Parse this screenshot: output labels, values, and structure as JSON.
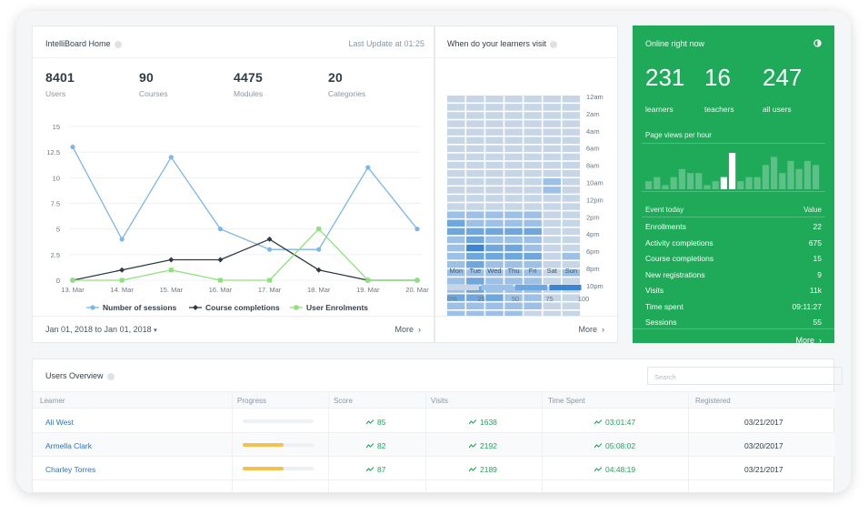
{
  "header": {
    "title": "IntelliBoard Home",
    "last_update": "Last Update at 01:25"
  },
  "stats": [
    {
      "value": "8401",
      "label": "Users"
    },
    {
      "value": "90",
      "label": "Courses"
    },
    {
      "value": "4475",
      "label": "Modules"
    },
    {
      "value": "20",
      "label": "Categories"
    }
  ],
  "chart_data": {
    "type": "line",
    "x": [
      "13. Mar",
      "14. Mar",
      "15. Mar",
      "16. Mar",
      "17. Mar",
      "18. Mar",
      "19. Mar",
      "20. Mar"
    ],
    "y_ticks": [
      "15",
      "12.5",
      "10",
      "7.5",
      "5",
      "2.5",
      "0"
    ],
    "ylim": [
      0,
      15
    ],
    "series": [
      {
        "name": "Number of sessions",
        "color": "#7eb6e6",
        "values": [
          13,
          4,
          12,
          5,
          3,
          3,
          11,
          5
        ]
      },
      {
        "name": "Course completions",
        "color": "#2f3a44",
        "values": [
          0,
          1,
          2,
          2,
          4,
          1,
          0,
          0
        ]
      },
      {
        "name": "User Enrolments",
        "color": "#8fe07c",
        "values": [
          0,
          0,
          1,
          0,
          0,
          5,
          0,
          0
        ]
      }
    ],
    "legend": "bottom",
    "grid": true
  },
  "date_range": "Jan 01, 2018 to Jan 01, 2018",
  "more_label": "More",
  "heatmap": {
    "title": "When do your learners visit",
    "days": [
      "Mon",
      "Tue",
      "Wed",
      "Thu",
      "Fri",
      "Sat",
      "Sun"
    ],
    "hours": [
      "12am",
      "2am",
      "4am",
      "6am",
      "8am",
      "10am",
      "12pm",
      "2pm",
      "4pm",
      "6pm",
      "8pm",
      "10pm"
    ],
    "levels": [
      [
        1,
        1,
        1,
        1,
        1,
        1,
        1
      ],
      [
        1,
        1,
        1,
        1,
        1,
        1,
        1
      ],
      [
        1,
        1,
        1,
        1,
        1,
        1,
        1
      ],
      [
        1,
        1,
        1,
        1,
        1,
        1,
        1
      ],
      [
        1,
        1,
        1,
        1,
        1,
        1,
        1
      ],
      [
        1,
        1,
        1,
        1,
        1,
        1,
        1
      ],
      [
        1,
        1,
        1,
        1,
        1,
        1,
        1
      ],
      [
        1,
        1,
        1,
        1,
        1,
        1,
        1
      ],
      [
        1,
        1,
        1,
        1,
        1,
        1,
        1
      ],
      [
        1,
        1,
        1,
        1,
        1,
        1,
        1
      ],
      [
        1,
        1,
        1,
        1,
        1,
        2,
        1
      ],
      [
        1,
        1,
        1,
        1,
        1,
        2,
        1
      ],
      [
        1,
        1,
        1,
        1,
        1,
        1,
        1
      ],
      [
        1,
        1,
        1,
        1,
        1,
        1,
        1
      ],
      [
        2,
        2,
        2,
        2,
        2,
        1,
        1
      ],
      [
        3,
        2,
        2,
        2,
        2,
        1,
        1
      ],
      [
        3,
        3,
        3,
        3,
        3,
        1,
        1
      ],
      [
        2,
        3,
        2,
        2,
        2,
        1,
        1
      ],
      [
        2,
        4,
        3,
        3,
        2,
        1,
        1
      ],
      [
        2,
        3,
        3,
        3,
        3,
        1,
        2
      ],
      [
        2,
        3,
        2,
        2,
        2,
        1,
        1
      ],
      [
        2,
        2,
        2,
        2,
        2,
        1,
        2
      ],
      [
        2,
        3,
        2,
        2,
        2,
        1,
        1
      ],
      [
        2,
        3,
        2,
        2,
        2,
        1,
        1
      ],
      [
        3,
        3,
        3,
        2,
        2,
        1,
        1
      ],
      [
        2,
        2,
        2,
        2,
        2,
        1,
        1
      ],
      [
        2,
        2,
        2,
        2,
        1,
        1,
        1
      ],
      [
        2,
        2,
        2,
        2,
        1,
        1,
        1
      ],
      [
        1,
        2,
        2,
        1,
        1,
        1,
        1
      ],
      [
        1,
        2,
        2,
        1,
        1,
        1,
        1
      ],
      [
        1,
        2,
        1,
        1,
        1,
        1,
        1
      ],
      [
        1,
        1,
        1,
        1,
        1,
        1,
        1
      ],
      [
        1,
        1,
        1,
        1,
        1,
        1,
        1
      ],
      [
        1,
        1,
        1,
        1,
        1,
        1,
        1
      ],
      [
        1,
        1,
        1,
        1,
        1,
        1,
        1
      ]
    ],
    "scale_labels": [
      "0%",
      "25",
      "50",
      "75",
      "100"
    ],
    "colors": [
      "#dfe5ea",
      "#c6d6e6",
      "#9dc0e6",
      "#6ea6de",
      "#3b85d2"
    ]
  },
  "online": {
    "title": "Online right now",
    "counts": [
      {
        "value": "231",
        "label": "learners"
      },
      {
        "value": "16",
        "label": "teachers"
      },
      {
        "value": "247",
        "label": "all users"
      }
    ],
    "page_views_label": "Page views per hour",
    "page_views": [
      2,
      3,
      1,
      3,
      5,
      4,
      4,
      1,
      2,
      3,
      9,
      2,
      3,
      3,
      6,
      8,
      4,
      7,
      5,
      7,
      6
    ],
    "event_header": "Event today",
    "value_header": "Value",
    "events": [
      {
        "name": "Enrollments",
        "value": "22"
      },
      {
        "name": "Activity completions",
        "value": "675"
      },
      {
        "name": "Course completions",
        "value": "15"
      },
      {
        "name": "New registrations",
        "value": "9"
      },
      {
        "name": "Visits",
        "value": "11k"
      },
      {
        "name": "Time spent",
        "value": "09:11:27"
      },
      {
        "name": "Sessions",
        "value": "55"
      }
    ],
    "more_label": "More"
  },
  "users": {
    "title": "Users Overview",
    "search_placeholder": "Search",
    "columns": [
      "Learner",
      "Progress",
      "Score",
      "Visits",
      "Time Spent",
      "Registered"
    ],
    "rows": [
      {
        "learner": "Ali West",
        "progress": 0,
        "score": "85",
        "visits": "1638",
        "time": "03:01:47",
        "registered": "03/21/2017"
      },
      {
        "learner": "Armella Clark",
        "progress": 0.58,
        "score": "82",
        "visits": "2192",
        "time": "05:08:02",
        "registered": "03/20/2017"
      },
      {
        "learner": "Charley Torres",
        "progress": 0.58,
        "score": "87",
        "visits": "2189",
        "time": "04:48:19",
        "registered": "03/21/2017"
      }
    ]
  }
}
